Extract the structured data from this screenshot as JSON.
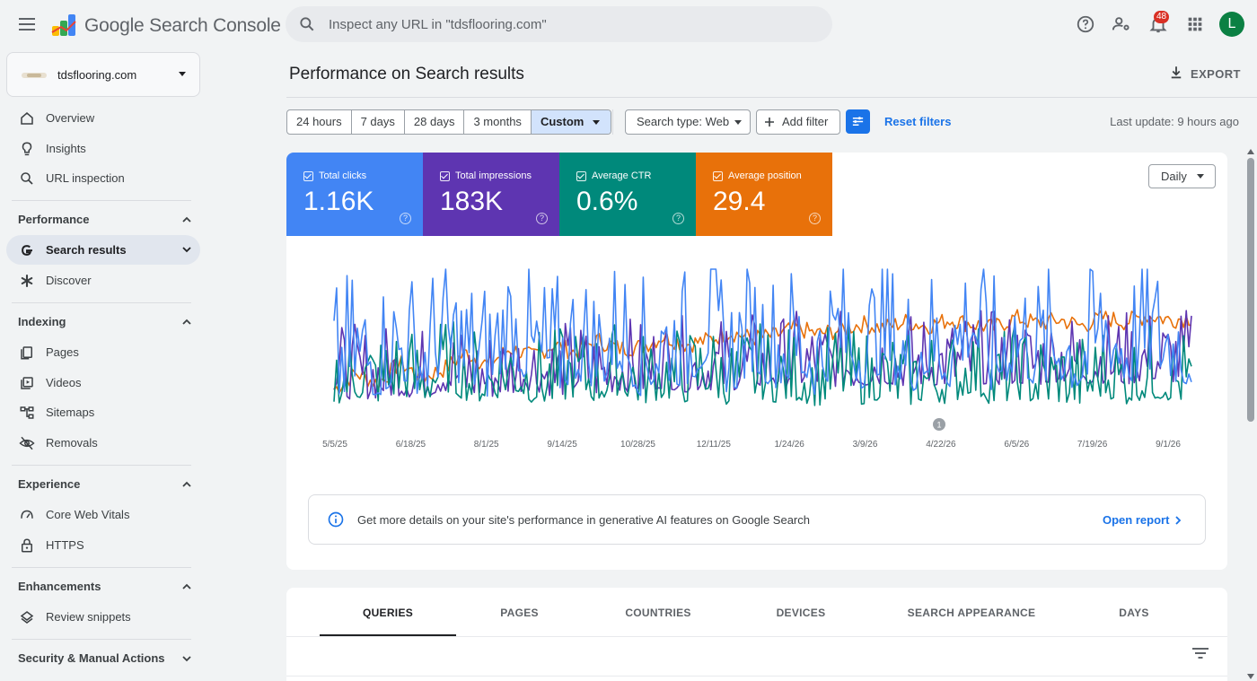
{
  "app": {
    "title": "Google Search Console"
  },
  "search": {
    "placeholder": "Inspect any URL in \"tdsflooring.com\""
  },
  "header": {
    "notification_count": "48",
    "avatar_initial": "L"
  },
  "property": {
    "name": "tdsflooring.com"
  },
  "sidebar": {
    "overview": "Overview",
    "insights": "Insights",
    "url_inspection": "URL inspection",
    "performance": "Performance",
    "search_results": "Search results",
    "discover": "Discover",
    "indexing": "Indexing",
    "pages": "Pages",
    "videos": "Videos",
    "sitemaps": "Sitemaps",
    "removals": "Removals",
    "experience": "Experience",
    "core_web_vitals": "Core Web Vitals",
    "https": "HTTPS",
    "enhancements": "Enhancements",
    "review_snippets": "Review snippets",
    "security": "Security & Manual Actions"
  },
  "main": {
    "title": "Performance on Search results",
    "export_label": "EXPORT",
    "date_ranges": [
      "24 hours",
      "7 days",
      "28 days",
      "3 months",
      "Custom"
    ],
    "search_type": "Search type: Web",
    "add_filter": "Add filter",
    "reset_filters": "Reset filters",
    "last_update": "Last update: 9 hours ago"
  },
  "metrics": [
    {
      "label": "Total clicks",
      "value": "1.16K",
      "color": "#4285f4"
    },
    {
      "label": "Total impressions",
      "value": "183K",
      "color": "#5e35b1"
    },
    {
      "label": "Average CTR",
      "value": "0.6%",
      "color": "#00897b"
    },
    {
      "label": "Average position",
      "value": "29.4",
      "color": "#e8710a"
    }
  ],
  "chart": {
    "granularity": "Daily",
    "x_ticks": [
      "5/5/25",
      "6/18/25",
      "8/1/25",
      "9/14/25",
      "10/28/25",
      "12/11/25",
      "1/24/26",
      "3/9/26",
      "4/22/26",
      "6/5/26",
      "7/19/26",
      "9/1/26"
    ],
    "annotation_label": "1"
  },
  "chart_data": {
    "type": "line",
    "x_start": "5/5/25",
    "x_end": "9/1/26",
    "x_ticks": [
      "5/5/25",
      "6/18/25",
      "8/1/25",
      "9/14/25",
      "10/28/25",
      "12/11/25",
      "1/24/26",
      "3/9/26",
      "4/22/26",
      "6/5/26",
      "7/19/26",
      "9/1/26"
    ],
    "series": [
      {
        "name": "Total clicks",
        "color": "#4285f4",
        "values": [
          1,
          3,
          2,
          4,
          2,
          5,
          3,
          2,
          6,
          3,
          2,
          4,
          3,
          5,
          2,
          4,
          3,
          6,
          2,
          5,
          3,
          4,
          2,
          6,
          3,
          5,
          2,
          4,
          3,
          7,
          2,
          5,
          3,
          4,
          2,
          6,
          3,
          5,
          4,
          3
        ]
      },
      {
        "name": "Total impressions",
        "color": "#5e35b1",
        "values": [
          300,
          250,
          280,
          320,
          260,
          400,
          300,
          280,
          350,
          420,
          300,
          380,
          330,
          400,
          360,
          450,
          380,
          420,
          400,
          480,
          420,
          500,
          450,
          480,
          460,
          520,
          480,
          500,
          470,
          540,
          500,
          520,
          490,
          560,
          510,
          530,
          500,
          580,
          540,
          560
        ]
      },
      {
        "name": "Average CTR",
        "color": "#00897b",
        "values": [
          0.5,
          0.8,
          0.6,
          1.0,
          0.5,
          1.2,
          0.7,
          0.6,
          1.1,
          0.6,
          0.5,
          0.9,
          0.6,
          1.0,
          0.5,
          0.8,
          0.6,
          1.1,
          0.4,
          0.9,
          0.6,
          0.7,
          0.4,
          1.0,
          0.5,
          0.8,
          0.4,
          0.7,
          0.5,
          1.1,
          0.4,
          0.8,
          0.5,
          0.6,
          0.4,
          0.9,
          0.5,
          0.8,
          0.7,
          0.5
        ]
      },
      {
        "name": "Average position",
        "color": "#e8710a",
        "values": [
          48,
          40,
          45,
          35,
          42,
          38,
          30,
          36,
          28,
          32,
          26,
          30,
          24,
          28,
          27,
          22,
          26,
          24,
          20,
          23,
          22,
          18,
          21,
          19,
          16,
          18,
          15,
          17,
          14,
          16,
          18,
          13,
          16,
          14,
          17,
          13,
          15,
          12,
          14,
          13
        ]
      }
    ]
  },
  "ai_banner": {
    "text": "Get more details on your site's performance in generative AI features on Google Search",
    "link": "Open report"
  },
  "tabs": [
    "QUERIES",
    "PAGES",
    "COUNTRIES",
    "DEVICES",
    "SEARCH APPEARANCE",
    "DAYS"
  ]
}
